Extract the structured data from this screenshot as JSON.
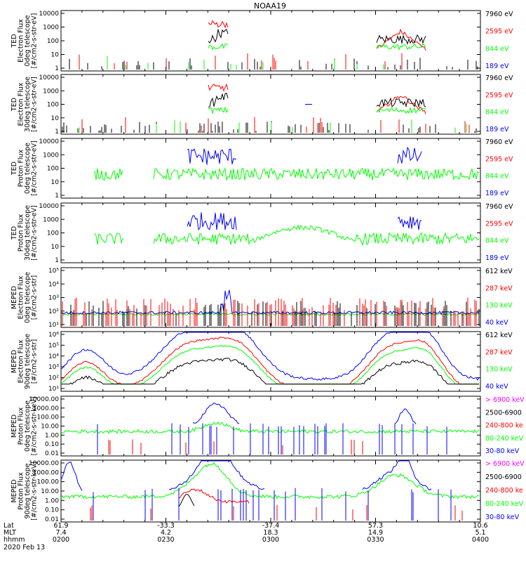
{
  "title": "NOAA19",
  "date": "2020 Feb 13",
  "footer_labels": [
    "Lat",
    "MLT",
    "hhmm"
  ],
  "x_ticks": [
    {
      "lat": "61.9",
      "mlt": "7.4",
      "hhmm": "0200"
    },
    {
      "lat": "-33.3",
      "mlt": "4.2",
      "hhmm": "0230"
    },
    {
      "lat": "-37.4",
      "mlt": "18.3",
      "hhmm": "0300"
    },
    {
      "lat": "57.3",
      "mlt": "14.9",
      "hhmm": "0330"
    },
    {
      "lat": "10.6",
      "mlt": "5.1",
      "hhmm": "0400"
    }
  ],
  "colors": {
    "black": "#000000",
    "red": "#ff0000",
    "green": "#00ff00",
    "blue": "#0000ff",
    "magenta": "#ff00ff"
  },
  "panels": [
    {
      "id": "ted-e-0",
      "ylabel": [
        "TED",
        "Electron Flux",
        "0deg telescope",
        "[#/cm2-s-str-eV]"
      ],
      "ticks": [
        "10000",
        "1000",
        "100",
        "10",
        "1"
      ],
      "legend": [
        {
          "text": "7960 eV",
          "color": "#000000"
        },
        {
          "text": "2595 eV",
          "color": "#ff0000"
        },
        {
          "text": "844 eV",
          "color": "#00ff00"
        },
        {
          "text": "189 eV",
          "color": "#0000ff"
        }
      ]
    },
    {
      "id": "ted-e-30",
      "ylabel": [
        "TED",
        "Electron Flux",
        "30deg telescope",
        "[#/cm2-s-str-eV]"
      ],
      "ticks": [
        "10000",
        "1000",
        "100",
        "10",
        "1"
      ],
      "legend": [
        {
          "text": "7960 eV",
          "color": "#000000"
        },
        {
          "text": "2595 eV",
          "color": "#ff0000"
        },
        {
          "text": "844 eV",
          "color": "#00ff00"
        },
        {
          "text": "189 eV",
          "color": "#0000ff"
        }
      ]
    },
    {
      "id": "ted-p-0",
      "ylabel": [
        "TED",
        "Proton Flux",
        "0deg telescope",
        "[#/cm2-s-str-eV]"
      ],
      "ticks": [
        "10000",
        "1000",
        "100",
        "10",
        "1"
      ],
      "legend": [
        {
          "text": "7960 eV",
          "color": "#000000"
        },
        {
          "text": "2595 eV",
          "color": "#ff0000"
        },
        {
          "text": "844 eV",
          "color": "#00ff00"
        },
        {
          "text": "189 eV",
          "color": "#0000ff"
        }
      ]
    },
    {
      "id": "ted-p-30",
      "ylabel": [
        "TED",
        "Proton Flux",
        "30deg telescope",
        "[#/cm2-s-str-eV]"
      ],
      "ticks": [
        "10000",
        "1000",
        "100",
        "10",
        "1"
      ],
      "legend": [
        {
          "text": "7960 eV",
          "color": "#000000"
        },
        {
          "text": "2595 eV",
          "color": "#ff0000"
        },
        {
          "text": "844 eV",
          "color": "#00ff00"
        },
        {
          "text": "189 eV",
          "color": "#0000ff"
        }
      ]
    },
    {
      "id": "meped-e-0",
      "ylabel": [
        "MEPED",
        "Electron Flux",
        "0deg telescope",
        "[#/cm2-s-str]"
      ],
      "ticks": [
        "10⁵",
        "10⁴",
        "10³",
        "10²",
        "10¹"
      ],
      "legend": [
        {
          "text": "612 keV",
          "color": "#000000"
        },
        {
          "text": "287 keV",
          "color": "#ff0000"
        },
        {
          "text": "130 keV",
          "color": "#00ff00"
        },
        {
          "text": "40 keV",
          "color": "#0000ff"
        }
      ]
    },
    {
      "id": "meped-e-90",
      "ylabel": [
        "MEPED",
        "Electron Flux",
        "90deg telescope",
        "[#/cm2-s-str]"
      ],
      "ticks": [
        "10⁶",
        "10⁵",
        "10⁴",
        "10³",
        "10²",
        "10¹"
      ],
      "legend": [
        {
          "text": "612 keV",
          "color": "#000000"
        },
        {
          "text": "287 keV",
          "color": "#ff0000"
        },
        {
          "text": "130 keV",
          "color": "#00ff00"
        },
        {
          "text": "40 keV",
          "color": "#0000ff"
        }
      ]
    },
    {
      "id": "meped-p-0",
      "ylabel": [
        "MEPED",
        "Proton Flux",
        "0deg telescope",
        "[#/cm2-s-str-keV]"
      ],
      "ticks": [
        "10000.00",
        "1000.00",
        "100.00",
        "10.00",
        "1.00",
        "0.10",
        "0.01"
      ],
      "legend": [
        {
          "text": "> 6900 keV",
          "color": "#ff00ff"
        },
        {
          "text": "2500-6900",
          "color": "#000000"
        },
        {
          "text": "240-800 ke",
          "color": "#ff0000"
        },
        {
          "text": "80-240 keV",
          "color": "#00ff00"
        },
        {
          "text": "30-80 keV",
          "color": "#0000ff"
        }
      ]
    },
    {
      "id": "meped-p-90",
      "ylabel": [
        "MEPED",
        "Proton Flux",
        "90deg telescope",
        "[#/cm2-s-str-keV]"
      ],
      "ticks": [
        "10000.00",
        "1000.00",
        "100.00",
        "10.00",
        "1.00",
        "0.10",
        "0.01"
      ],
      "legend": [
        {
          "text": "> 6900 keV",
          "color": "#ff00ff"
        },
        {
          "text": "2500-6900",
          "color": "#000000"
        },
        {
          "text": "240-800 ke",
          "color": "#ff0000"
        },
        {
          "text": "80-240 keV",
          "color": "#00ff00"
        },
        {
          "text": "30-80 keV",
          "color": "#0000ff"
        }
      ]
    }
  ],
  "chart_data": {
    "type": "line",
    "title": "NOAA19",
    "xlabel": "hhmm",
    "x_range": [
      "0200",
      "0400"
    ],
    "grid": false,
    "legend_placement": "right",
    "note_series": "Particle flux time series for 8 stacked panels; channels per legend entries",
    "log_scale_y": true
  }
}
